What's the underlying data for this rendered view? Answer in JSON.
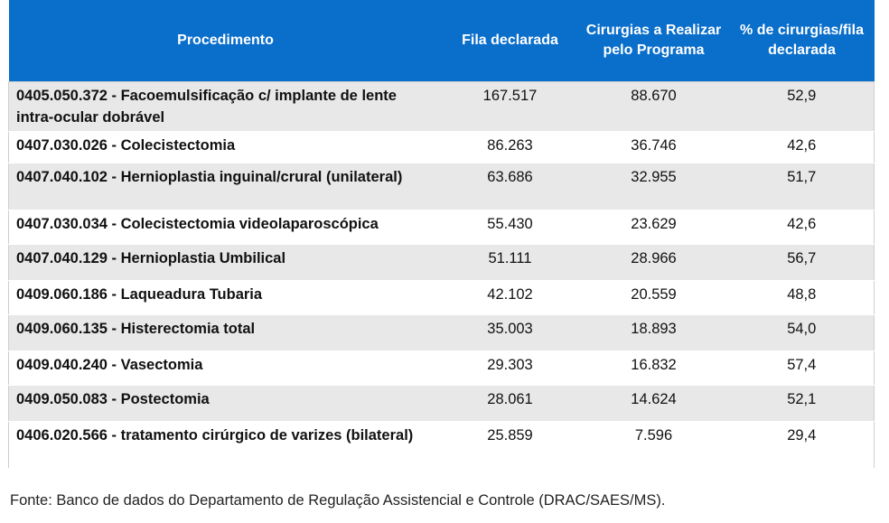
{
  "header": {
    "procedure": "Procedimento",
    "queue": "Fila declarada",
    "surgeries": "Cirurgias a Realizar pelo Programa",
    "percent": "% de cirurgias/fila declarada"
  },
  "rows": [
    {
      "procedure": "0405.050.372 - Facoemulsificação c/ implante de lente intra-ocular dobrável",
      "queue": "167.517",
      "surgeries": "88.670",
      "percent": "52,9"
    },
    {
      "procedure": "0407.030.026 - Colecistectomia",
      "queue": "86.263",
      "surgeries": "36.746",
      "percent": "42,6"
    },
    {
      "procedure": "0407.040.102 - Hernioplastia inguinal/crural (unilateral)",
      "queue": "63.686",
      "surgeries": "32.955",
      "percent": "51,7"
    },
    {
      "procedure": "0407.030.034 - Colecistectomia videolaparoscópica",
      "queue": "55.430",
      "surgeries": "23.629",
      "percent": "42,6"
    },
    {
      "procedure": "0407.040.129 - Hernioplastia Umbilical",
      "queue": "51.111",
      "surgeries": "28.966",
      "percent": "56,7"
    },
    {
      "procedure": "0409.060.186 - Laqueadura Tubaria",
      "queue": "42.102",
      "surgeries": "20.559",
      "percent": "48,8"
    },
    {
      "procedure": "0409.060.135 - Histerectomia total",
      "queue": "35.003",
      "surgeries": "18.893",
      "percent": "54,0"
    },
    {
      "procedure": "0409.040.240 - Vasectomia",
      "queue": "29.303",
      "surgeries": "16.832",
      "percent": "57,4"
    },
    {
      "procedure": "0409.050.083 - Postectomia",
      "queue": "28.061",
      "surgeries": "14.624",
      "percent": "52,1"
    },
    {
      "procedure": "0406.020.566 - tratamento cirúrgico de varizes (bilateral)",
      "queue": "25.859",
      "surgeries": "7.596",
      "percent": "29,4"
    }
  ],
  "source": {
    "label": "Fonte:",
    "text": " Banco de dados do Departamento de Regulação Assistencial e Controle (DRAC/SAES/MS)."
  },
  "colors": {
    "header_bg": "#0a6ecb",
    "row_shade": "#e8e8e8"
  }
}
